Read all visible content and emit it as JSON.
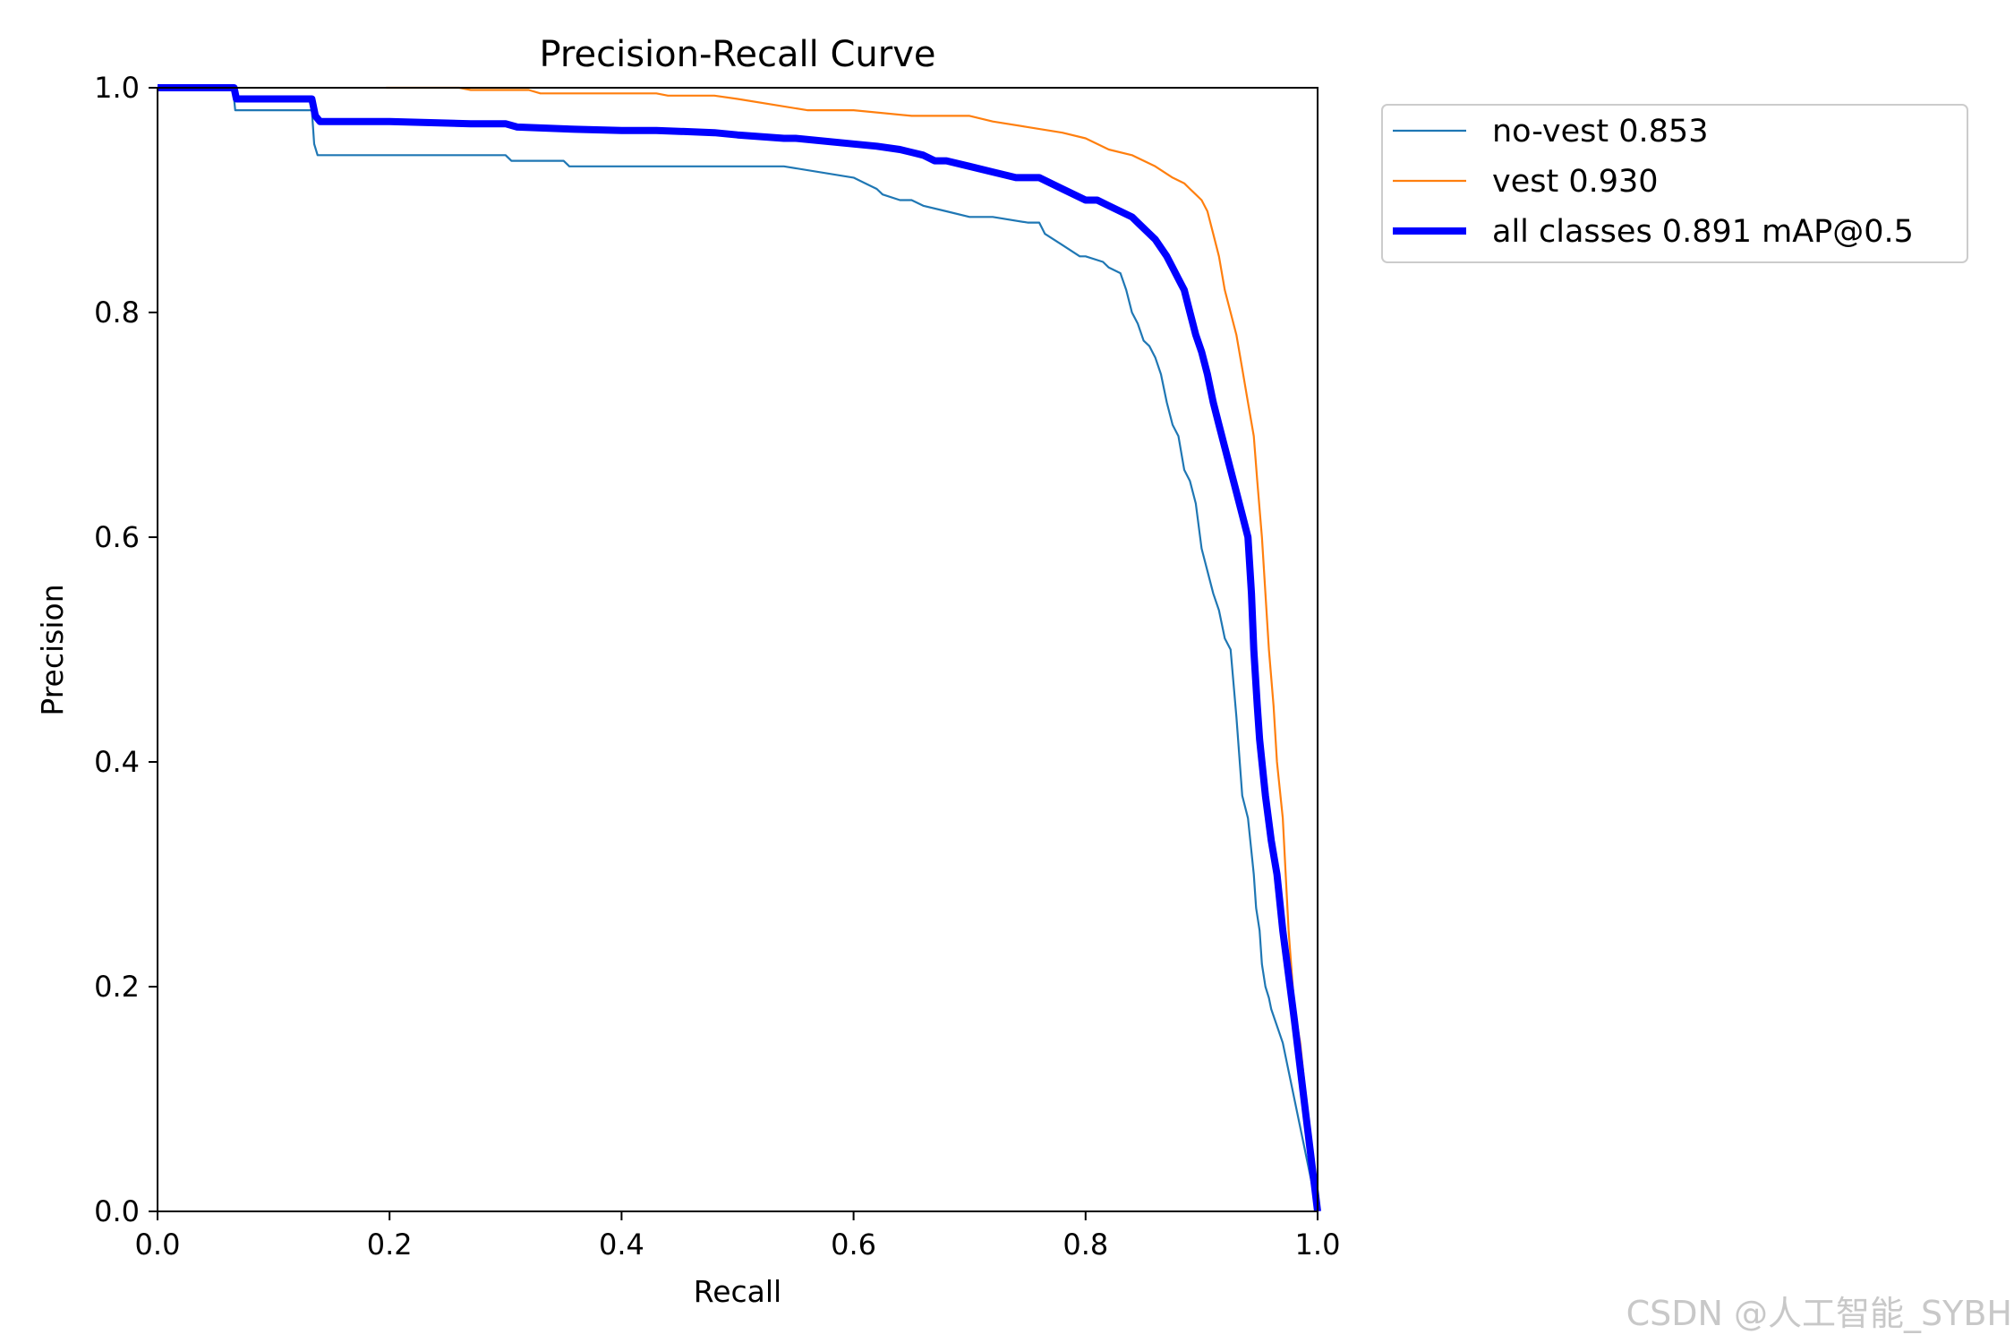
{
  "chart_data": {
    "type": "line",
    "title": "Precision-Recall Curve",
    "xlabel": "Recall",
    "ylabel": "Precision",
    "xlim": [
      0.0,
      1.0
    ],
    "ylim": [
      0.0,
      1.0
    ],
    "x_ticks": [
      "0.0",
      "0.2",
      "0.4",
      "0.6",
      "0.8",
      "1.0"
    ],
    "y_ticks": [
      "0.0",
      "0.2",
      "0.4",
      "0.6",
      "0.8",
      "1.0"
    ],
    "grid": false,
    "legend_position": "outside-top-right",
    "series": [
      {
        "name": "no-vest 0.853",
        "color": "#1f77b4",
        "style": "thin",
        "x": [
          0.0,
          0.065,
          0.067,
          0.133,
          0.135,
          0.138,
          0.15,
          0.3,
          0.305,
          0.35,
          0.355,
          0.41,
          0.54,
          0.6,
          0.61,
          0.62,
          0.625,
          0.64,
          0.65,
          0.66,
          0.68,
          0.7,
          0.72,
          0.75,
          0.76,
          0.765,
          0.78,
          0.795,
          0.8,
          0.815,
          0.82,
          0.83,
          0.835,
          0.84,
          0.845,
          0.85,
          0.855,
          0.86,
          0.865,
          0.87,
          0.875,
          0.88,
          0.885,
          0.89,
          0.895,
          0.9,
          0.905,
          0.91,
          0.915,
          0.92,
          0.925,
          0.93,
          0.935,
          0.94,
          0.942,
          0.945,
          0.947,
          0.95,
          0.952,
          0.955,
          0.958,
          0.96,
          0.97,
          1.0
        ],
        "y": [
          1.0,
          1.0,
          0.98,
          0.98,
          0.95,
          0.94,
          0.94,
          0.94,
          0.935,
          0.935,
          0.93,
          0.93,
          0.93,
          0.92,
          0.915,
          0.91,
          0.905,
          0.9,
          0.9,
          0.895,
          0.89,
          0.885,
          0.885,
          0.88,
          0.88,
          0.87,
          0.86,
          0.85,
          0.85,
          0.845,
          0.84,
          0.835,
          0.82,
          0.8,
          0.79,
          0.775,
          0.77,
          0.76,
          0.745,
          0.72,
          0.7,
          0.69,
          0.66,
          0.65,
          0.63,
          0.59,
          0.57,
          0.55,
          0.535,
          0.51,
          0.5,
          0.44,
          0.37,
          0.35,
          0.33,
          0.3,
          0.27,
          0.25,
          0.22,
          0.2,
          0.19,
          0.18,
          0.15,
          0.0
        ]
      },
      {
        "name": "vest 0.930",
        "color": "#ff7f0e",
        "style": "thin",
        "x": [
          0.197,
          0.26,
          0.27,
          0.32,
          0.33,
          0.43,
          0.44,
          0.48,
          0.5,
          0.56,
          0.6,
          0.65,
          0.7,
          0.72,
          0.75,
          0.78,
          0.8,
          0.81,
          0.82,
          0.84,
          0.86,
          0.875,
          0.885,
          0.89,
          0.895,
          0.9,
          0.905,
          0.91,
          0.915,
          0.92,
          0.925,
          0.93,
          0.935,
          0.94,
          0.945,
          0.948,
          0.952,
          0.955,
          0.958,
          0.962,
          0.965,
          0.97,
          0.975,
          0.98,
          0.985,
          1.0
        ],
        "y": [
          1.0,
          1.0,
          0.998,
          0.998,
          0.995,
          0.995,
          0.993,
          0.993,
          0.99,
          0.98,
          0.98,
          0.975,
          0.975,
          0.97,
          0.965,
          0.96,
          0.955,
          0.95,
          0.945,
          0.94,
          0.93,
          0.92,
          0.915,
          0.91,
          0.905,
          0.9,
          0.89,
          0.87,
          0.85,
          0.82,
          0.8,
          0.78,
          0.75,
          0.72,
          0.69,
          0.65,
          0.6,
          0.55,
          0.5,
          0.45,
          0.4,
          0.35,
          0.25,
          0.18,
          0.15,
          0.0
        ]
      },
      {
        "name": "all classes 0.891 mAP@0.5",
        "color": "#0000ff",
        "style": "thick",
        "x": [
          0.0,
          0.066,
          0.068,
          0.133,
          0.136,
          0.14,
          0.2,
          0.27,
          0.3,
          0.31,
          0.36,
          0.4,
          0.43,
          0.48,
          0.5,
          0.54,
          0.55,
          0.6,
          0.62,
          0.64,
          0.66,
          0.67,
          0.68,
          0.7,
          0.72,
          0.74,
          0.76,
          0.78,
          0.8,
          0.81,
          0.82,
          0.84,
          0.85,
          0.86,
          0.87,
          0.875,
          0.88,
          0.885,
          0.89,
          0.895,
          0.9,
          0.905,
          0.91,
          0.915,
          0.92,
          0.925,
          0.93,
          0.935,
          0.94,
          0.943,
          0.945,
          0.948,
          0.95,
          0.952,
          0.955,
          0.96,
          0.965,
          0.97,
          0.975,
          0.98,
          1.0
        ],
        "y": [
          1.0,
          1.0,
          0.99,
          0.99,
          0.975,
          0.97,
          0.97,
          0.968,
          0.968,
          0.965,
          0.963,
          0.962,
          0.962,
          0.96,
          0.958,
          0.955,
          0.955,
          0.95,
          0.948,
          0.945,
          0.94,
          0.935,
          0.935,
          0.93,
          0.925,
          0.92,
          0.92,
          0.91,
          0.9,
          0.9,
          0.895,
          0.885,
          0.875,
          0.865,
          0.85,
          0.84,
          0.83,
          0.82,
          0.8,
          0.78,
          0.765,
          0.745,
          0.72,
          0.7,
          0.68,
          0.66,
          0.64,
          0.62,
          0.6,
          0.55,
          0.5,
          0.45,
          0.42,
          0.4,
          0.37,
          0.33,
          0.3,
          0.25,
          0.21,
          0.17,
          0.0
        ]
      }
    ]
  },
  "watermark": "CSDN @人工智能_SYBH"
}
